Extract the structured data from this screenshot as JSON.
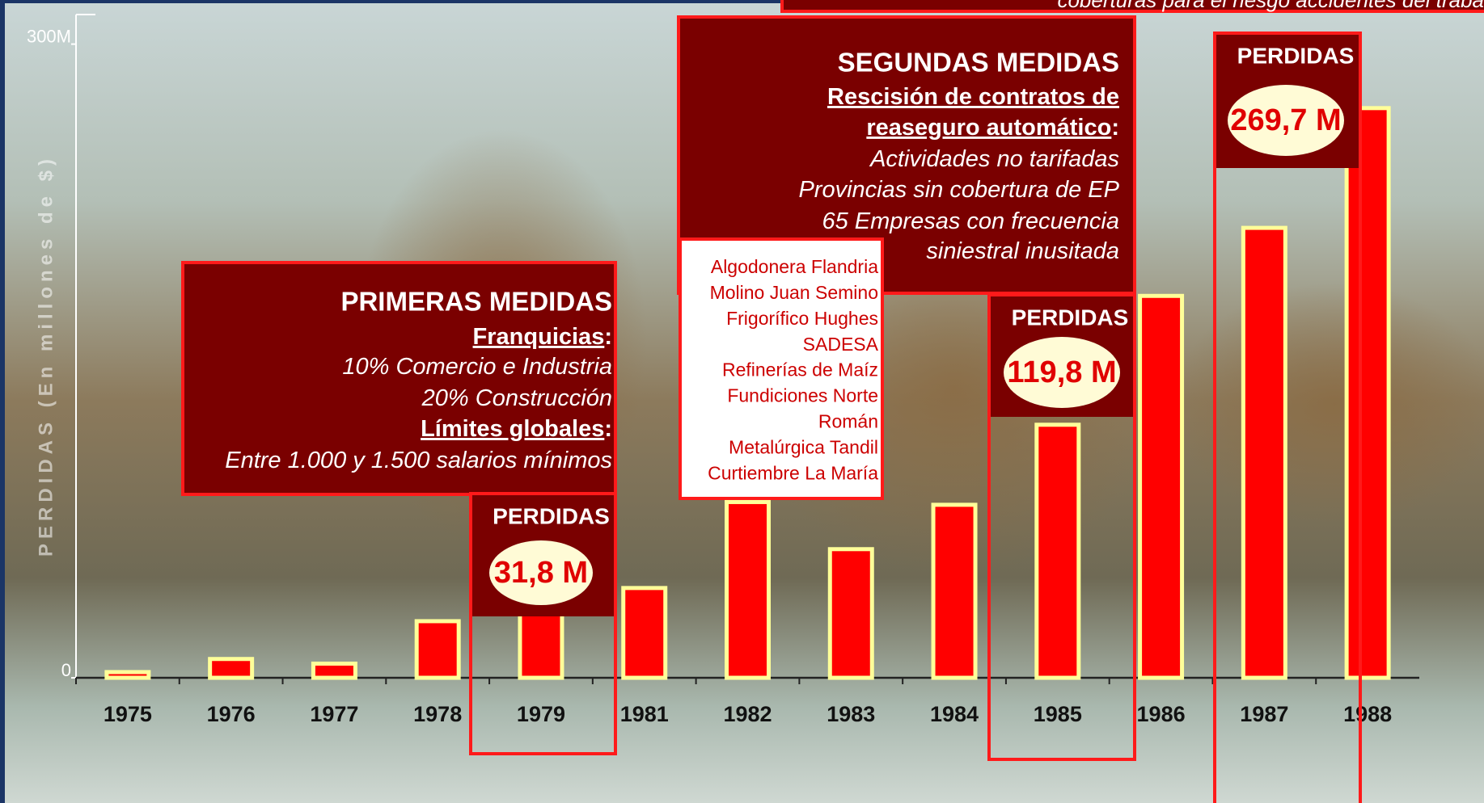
{
  "chart_data": {
    "type": "bar",
    "y_axis_label": "PERDIDAS  (En millones de $)",
    "categories": [
      "1975",
      "1976",
      "1977",
      "1978",
      "1979",
      "1981",
      "1982",
      "1983",
      "1984",
      "1985",
      "1986",
      "1987",
      "1988"
    ],
    "values": [
      2.7,
      8.9,
      6.7,
      26.8,
      31.8,
      42.5,
      83.2,
      60.9,
      81.9,
      119.8,
      180.8,
      213,
      269.7
    ],
    "value_labels": [
      null,
      null,
      null,
      null,
      "31,8 M",
      null,
      null,
      null,
      null,
      "119,8 M",
      null,
      null,
      "269,7 M"
    ],
    "callout_heading": "PERDIDAS",
    "color": "#ff0000",
    "ylim": [
      0,
      314
    ],
    "yticks": [
      0,
      {
        "value": 300,
        "label": "300M"
      }
    ],
    "grid": false,
    "annotations": [
      {
        "title": "PRIMERAS MEDIDAS",
        "lines": [
          {
            "heading": "Franquicias",
            "suffix": ":"
          },
          {
            "text": "10% Comercio e Industria"
          },
          {
            "text": "20% Construcción"
          },
          {
            "heading": "Límites globales",
            "suffix": ":"
          },
          {
            "text": "Entre 1.000 y 1.500 salarios mínimos"
          }
        ]
      },
      {
        "title": "SEGUNDAS MEDIDAS",
        "lines": [
          {
            "heading": "Rescisión de contratos de "
          },
          {
            "heading": "reaseguro automático",
            "suffix": ":"
          },
          {
            "text": "Actividades no tarifadas"
          },
          {
            "text": "Provincias sin cobertura de EP"
          },
          {
            "text": "65 Empresas con frecuencia "
          },
          {
            "text": "siniestral inusitada"
          }
        ]
      }
    ],
    "companies": [
      "Algodonera Flandria",
      "Molino Juan Semino",
      "Frigorífico Hughes",
      "SADESA",
      "Refinerías de Maíz",
      "Fundiciones Norte",
      "Román",
      "Metalúrgica Tandil",
      "Curtiembre La María"
    ],
    "top_note": "coberturas para el riesgo accidentes del traba"
  }
}
